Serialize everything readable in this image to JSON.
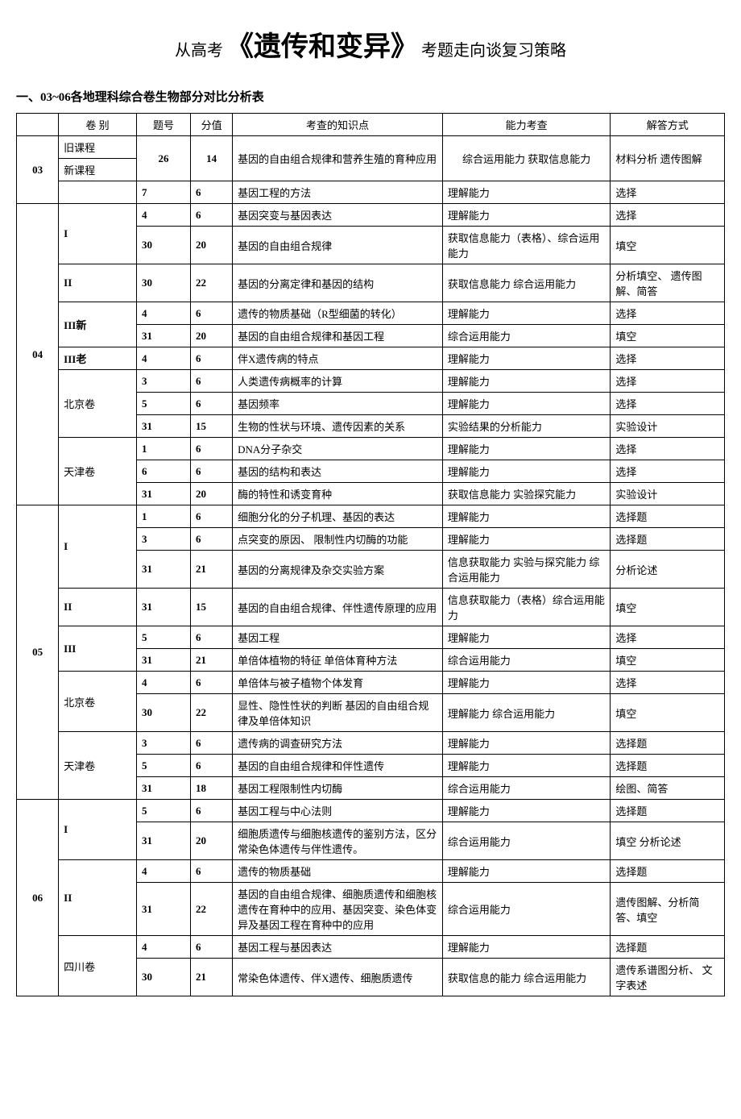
{
  "title": {
    "prefix": "从高考",
    "main": "《遗传和变异》",
    "suffix": "考题走向谈复习策略"
  },
  "section_header": "一、03~06各地理科综合卷生物部分对比分析表",
  "headers": {
    "year": "",
    "paper": "卷 别",
    "qnum": "题号",
    "score": "分值",
    "knowledge": "考查的知识点",
    "ability": "能力考查",
    "method": "解答方式"
  },
  "data": {
    "y03": {
      "label": "03",
      "old": {
        "paper": "旧课程"
      },
      "new": {
        "paper": "新课程"
      },
      "r1": {
        "qnum": "26",
        "score": "14",
        "knowledge": "基因的自由组合规律和营养生殖的育种应用",
        "ability": "综合运用能力\n获取信息能力",
        "method": "材料分析\n遗传图解"
      },
      "r2": {
        "qnum": "7",
        "score": "6",
        "knowledge": "基因工程的方法",
        "ability": "理解能力",
        "method": "选择"
      }
    },
    "y04": {
      "label": "04",
      "p1": {
        "paper": "I",
        "r1": {
          "qnum": "4",
          "score": "6",
          "knowledge": "基因突变与基因表达",
          "ability": "理解能力",
          "method": "选择"
        },
        "r2": {
          "qnum": "30",
          "score": "20",
          "knowledge": "基因的自由组合规律",
          "ability": "获取信息能力（表格）、综合运用能力",
          "method": "填空"
        }
      },
      "p2": {
        "paper": "II",
        "r1": {
          "qnum": "30",
          "score": "22",
          "knowledge": "基因的分离定律和基因的结构",
          "ability": "获取信息能力\n综合运用能力",
          "method": "分析填空、\n遗传图解、简答"
        }
      },
      "p3": {
        "paper": "III新",
        "r1": {
          "qnum": "4",
          "score": "6",
          "knowledge": "遗传的物质基础（R型细菌的转化）",
          "ability": "理解能力",
          "method": "选择"
        },
        "r2": {
          "qnum": "31",
          "score": "20",
          "knowledge": "基因的自由组合规律和基因工程",
          "ability": "综合运用能力",
          "method": "填空"
        }
      },
      "p4": {
        "paper": "III老",
        "r1": {
          "qnum": "4",
          "score": "6",
          "knowledge": "伴X遗传病的特点",
          "ability": "理解能力",
          "method": "选择"
        }
      },
      "p5": {
        "paper": "北京卷",
        "r1": {
          "qnum": "3",
          "score": "6",
          "knowledge": "人类遗传病概率的计算",
          "ability": "理解能力",
          "method": "选择"
        },
        "r2": {
          "qnum": "5",
          "score": "6",
          "knowledge": "基因频率",
          "ability": "理解能力",
          "method": "选择"
        },
        "r3": {
          "qnum": "31",
          "score": "15",
          "knowledge": "生物的性状与环境、遗传因素的关系",
          "ability": "实验结果的分析能力",
          "method": "实验设计"
        }
      },
      "p6": {
        "paper": "天津卷",
        "r1": {
          "qnum": "1",
          "score": "6",
          "knowledge": "DNA分子杂交",
          "ability": "理解能力",
          "method": "选择"
        },
        "r2": {
          "qnum": "6",
          "score": "6",
          "knowledge": "基因的结构和表达",
          "ability": "理解能力",
          "method": "选择"
        },
        "r3": {
          "qnum": "31",
          "score": "20",
          "knowledge": "酶的特性和诱变育种",
          "ability": "获取信息能力\n实验探究能力",
          "method": "实验设计"
        }
      }
    },
    "y05": {
      "label": "05",
      "p1": {
        "paper": "I",
        "r1": {
          "qnum": "1",
          "score": "6",
          "knowledge": "细胞分化的分子机理、基因的表达",
          "ability": "理解能力",
          "method": "选择题"
        },
        "r2": {
          "qnum": "3",
          "score": "6",
          "knowledge": "点突变的原因、\n限制性内切酶的功能",
          "ability": "理解能力",
          "method": "选择题"
        },
        "r3": {
          "qnum": "31",
          "score": "21",
          "knowledge": "基因的分离规律及杂交实验方案",
          "ability": "信息获取能力\n实验与探究能力\n综合运用能力",
          "method": "分析论述"
        }
      },
      "p2": {
        "paper": "II",
        "r1": {
          "qnum": "31",
          "score": "15",
          "knowledge": "基因的自由组合规律、伴性遗传原理的应用",
          "ability": "信息获取能力（表格）综合运用能力",
          "method": "填空"
        }
      },
      "p3": {
        "paper": "III",
        "r1": {
          "qnum": "5",
          "score": "6",
          "knowledge": "基因工程",
          "ability": "理解能力",
          "method": "选择"
        },
        "r2": {
          "qnum": "31",
          "score": "21",
          "knowledge": "单倍体植物的特征\n单倍体育种方法",
          "ability": "综合运用能力",
          "method": "填空"
        }
      },
      "p4": {
        "paper": "北京卷",
        "r1": {
          "qnum": "4",
          "score": "6",
          "knowledge": "单倍体与被子植物个体发育",
          "ability": "理解能力",
          "method": "选择"
        },
        "r2": {
          "qnum": "30",
          "score": "22",
          "knowledge": "显性、隐性性状的判断\n基因的自由组合规律及单倍体知识",
          "ability": "理解能力\n综合运用能力",
          "method": "填空"
        }
      },
      "p5": {
        "paper": "天津卷",
        "r1": {
          "qnum": "3",
          "score": "6",
          "knowledge": "遗传病的调查研究方法",
          "ability": "理解能力",
          "method": "选择题"
        },
        "r2": {
          "qnum": "5",
          "score": "6",
          "knowledge": "基因的自由组合规律和伴性遗传",
          "ability": "理解能力",
          "method": "选择题"
        },
        "r3": {
          "qnum": "31",
          "score": "18",
          "knowledge": "基因工程限制性内切酶",
          "ability": "综合运用能力",
          "method": "绘图、简答"
        }
      }
    },
    "y06": {
      "label": "06",
      "p1": {
        "paper": "I",
        "r1": {
          "qnum": "5",
          "score": "6",
          "knowledge": "基因工程与中心法则",
          "ability": "理解能力",
          "method": "选择题"
        },
        "r2": {
          "qnum": "31",
          "score": "20",
          "knowledge": "细胞质遗传与细胞核遗传的鉴别方法，区分常染色体遗传与伴性遗传。",
          "ability": "综合运用能力",
          "method": "填空\n分析论述"
        }
      },
      "p2": {
        "paper": "II",
        "r1": {
          "qnum": "4",
          "score": "6",
          "knowledge": "遗传的物质基础",
          "ability": "理解能力",
          "method": "选择题"
        },
        "r2": {
          "qnum": "31",
          "score": "22",
          "knowledge": "基因的自由组合规律、细胞质遗传和细胞核遗传在育种中的应用、基因突变、染色体变异及基因工程在育种中的应用",
          "ability": "综合运用能力",
          "method": "遗传图解、分析简答、填空"
        }
      },
      "p3": {
        "paper": "四川卷",
        "r1": {
          "qnum": "4",
          "score": "6",
          "knowledge": "基因工程与基因表达",
          "ability": "理解能力",
          "method": "选择题"
        },
        "r2": {
          "qnum": "30",
          "score": "21",
          "knowledge": "常染色体遗传、伴X遗传、细胞质遗传",
          "ability": "获取信息的能力\n综合运用能力",
          "method": "遗传系谱图分析、\n文字表述"
        }
      }
    }
  }
}
